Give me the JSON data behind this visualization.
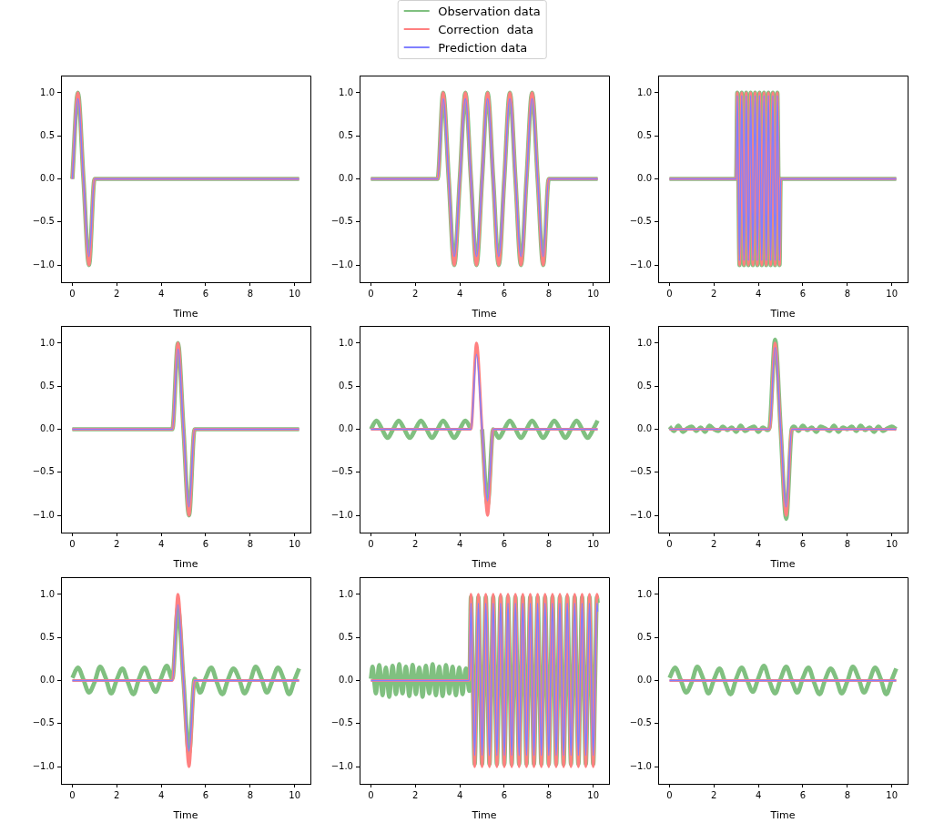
{
  "chart_data": [
    {
      "type": "line",
      "legend": "top",
      "xlabel": "Time",
      "xlim": [
        -0.51,
        10.71
      ],
      "xticks": [
        0,
        2,
        4,
        6,
        8,
        10
      ],
      "ylim": [
        -1.2,
        1.2
      ],
      "yticks": [
        {
          "value": -1,
          "label": "−1.0"
        },
        {
          "value": -0.5,
          "label": "−0.5"
        },
        {
          "value": 0,
          "label": "0.0"
        },
        {
          "value": 0.5,
          "label": "0.5"
        },
        {
          "value": 1,
          "label": "1.0"
        }
      ],
      "x": [
        0,
        0.25,
        0.5,
        0.75,
        1,
        10.2
      ],
      "series": [
        {
          "name": "Observation data",
          "color": "#80c080",
          "values": [
            0,
            1,
            0,
            -1,
            0,
            0
          ]
        },
        {
          "name": "Correction  data",
          "color": "#ff8080",
          "values": [
            0,
            1,
            0,
            -1,
            0,
            0
          ]
        },
        {
          "name": "Prediction data",
          "color": "#8080ff",
          "values": [
            0,
            0.93,
            0,
            -0.9,
            0,
            0
          ]
        }
      ]
    },
    {
      "type": "line",
      "xlabel": "Time",
      "xlim": [
        -0.51,
        10.71
      ],
      "xticks": [
        0,
        2,
        4,
        6,
        8,
        10
      ],
      "ylim": [
        -1.2,
        1.2
      ],
      "yticks": [
        {
          "value": -1,
          "label": "−1.0"
        },
        {
          "value": -0.5,
          "label": "−0.5"
        },
        {
          "value": 0,
          "label": "0.0"
        },
        {
          "value": 0.5,
          "label": "0.5"
        },
        {
          "value": 1,
          "label": "1.0"
        }
      ],
      "x": [
        0,
        3,
        3.25,
        3.5,
        3.75,
        4,
        4.25,
        4.5,
        4.75,
        5,
        5.25,
        5.5,
        5.75,
        6,
        6.25,
        6.5,
        6.75,
        7,
        7.25,
        7.5,
        7.75,
        8,
        10.2
      ],
      "series": [
        {
          "color": "#80c080",
          "values": [
            0,
            0,
            1,
            0,
            -1,
            0,
            1,
            0,
            -1,
            0,
            1,
            0,
            -1,
            0,
            1,
            0,
            -1,
            0,
            1,
            0,
            -1,
            0,
            0
          ]
        },
        {
          "color": "#ff8080",
          "values": [
            0,
            0,
            1,
            0,
            -1,
            0,
            1,
            0,
            -1,
            0,
            1,
            0,
            -1,
            0,
            1,
            0,
            -1,
            0,
            1,
            0,
            -1,
            0,
            0
          ]
        },
        {
          "color": "#8080ff",
          "values": [
            0,
            0,
            0.93,
            0,
            -0.9,
            0,
            0.93,
            0,
            -0.9,
            0,
            0.93,
            0,
            -0.9,
            0,
            0.93,
            0,
            -0.9,
            0,
            0.93,
            0,
            -0.9,
            0,
            0
          ]
        }
      ]
    },
    {
      "type": "line",
      "xlabel": "Time",
      "xlim": [
        -0.51,
        10.71
      ],
      "xticks": [
        0,
        2,
        4,
        6,
        8,
        10
      ],
      "ylim": [
        -1.2,
        1.2
      ],
      "yticks": [
        {
          "value": -1,
          "label": "−1.0"
        },
        {
          "value": -0.5,
          "label": "−0.5"
        },
        {
          "value": 0,
          "label": "0.0"
        },
        {
          "value": 0.5,
          "label": "0.5"
        },
        {
          "value": 1,
          "label": "1.0"
        }
      ],
      "x": [
        0,
        3,
        3.05,
        3.1,
        3.15,
        3.2,
        3.25,
        3.3,
        3.35,
        3.4,
        3.45,
        3.5,
        3.55,
        3.6,
        3.65,
        3.7,
        3.75,
        3.8,
        3.85,
        3.9,
        3.95,
        4,
        4.05,
        4.1,
        4.15,
        4.2,
        4.25,
        4.3,
        4.35,
        4.4,
        4.45,
        4.5,
        4.55,
        4.6,
        4.65,
        4.7,
        4.75,
        4.8,
        4.85,
        4.9,
        4.95,
        5,
        10.2
      ],
      "series": [
        {
          "color": "#80c080",
          "values": [
            0,
            0,
            1,
            0,
            -1,
            0,
            1,
            0,
            -1,
            0,
            1,
            0,
            -1,
            0,
            1,
            0,
            -1,
            0,
            1,
            0,
            -1,
            0,
            1,
            0,
            -1,
            0,
            1,
            0,
            -1,
            0,
            1,
            0,
            -1,
            0,
            1,
            0,
            -1,
            0,
            1,
            0,
            -1,
            0,
            0
          ]
        },
        {
          "color": "#ff8080",
          "values": [
            0,
            0,
            1,
            0,
            -1,
            0,
            1,
            0,
            -1,
            0,
            1,
            0,
            -1,
            0,
            1,
            0,
            -1,
            0,
            1,
            0,
            -1,
            0,
            1,
            0,
            -1,
            0,
            1,
            0,
            -1,
            0,
            1,
            0,
            -1,
            0,
            1,
            0,
            -1,
            0,
            1,
            0,
            -1,
            0,
            0
          ]
        },
        {
          "color": "#8080ff",
          "values": [
            0,
            0,
            0.97,
            0,
            -0.95,
            0,
            0.97,
            0,
            -0.95,
            0,
            0.97,
            0,
            -0.95,
            0,
            0.97,
            0,
            -0.95,
            0,
            0.97,
            0,
            -0.95,
            0,
            0.97,
            0,
            -0.95,
            0,
            0.97,
            0,
            -0.95,
            0,
            0.97,
            0,
            -0.95,
            0,
            0.97,
            0,
            -0.95,
            0,
            0.97,
            0,
            -0.95,
            0,
            0
          ]
        }
      ]
    },
    {
      "type": "line",
      "xlabel": "Time",
      "xlim": [
        -0.51,
        10.71
      ],
      "xticks": [
        0,
        2,
        4,
        6,
        8,
        10
      ],
      "ylim": [
        -1.2,
        1.2
      ],
      "yticks": [
        {
          "value": -1,
          "label": "−1.0"
        },
        {
          "value": -0.5,
          "label": "−0.5"
        },
        {
          "value": 0,
          "label": "0.0"
        },
        {
          "value": 0.5,
          "label": "0.5"
        },
        {
          "value": 1,
          "label": "1.0"
        }
      ],
      "x": [
        0,
        4.5,
        4.75,
        5,
        5.25,
        5.5,
        10.2
      ],
      "series": [
        {
          "color": "#80c080",
          "values": [
            0,
            0,
            1,
            0,
            -1,
            0,
            0
          ]
        },
        {
          "color": "#ff8080",
          "values": [
            0,
            0,
            1,
            0,
            -1,
            0,
            0
          ]
        },
        {
          "color": "#8080ff",
          "values": [
            0,
            0,
            0.93,
            0,
            -0.9,
            0,
            0
          ]
        }
      ]
    },
    {
      "type": "line",
      "xlabel": "Time",
      "xlim": [
        -0.51,
        10.71
      ],
      "xticks": [
        0,
        2,
        4,
        6,
        8,
        10
      ],
      "ylim": [
        -1.2,
        1.2
      ],
      "yticks": [
        {
          "value": -1,
          "label": "−1.0"
        },
        {
          "value": -0.5,
          "label": "−0.5"
        },
        {
          "value": 0,
          "label": "0.0"
        },
        {
          "value": 0.5,
          "label": "0.5"
        },
        {
          "value": 1,
          "label": "1.0"
        }
      ],
      "x": [
        0,
        4.5,
        4.75,
        5,
        5.25,
        5.5,
        10.2
      ],
      "series": [
        {
          "color": "#80c080",
          "x": [
            0,
            0.25,
            0.5,
            0.75,
            1,
            1.25,
            1.5,
            1.75,
            2,
            2.25,
            2.5,
            2.75,
            3,
            3.25,
            3.5,
            3.75,
            4,
            4.25,
            4.5,
            4.75,
            5,
            5.25,
            5.5,
            5.75,
            6,
            6.25,
            6.5,
            6.75,
            7,
            7.25,
            7.5,
            7.75,
            8,
            8.25,
            8.5,
            8.75,
            9,
            9.25,
            9.5,
            9.75,
            10,
            10.2
          ],
          "values": [
            0,
            0.1,
            0,
            -0.1,
            0,
            0.1,
            0,
            -0.1,
            0,
            0.1,
            0,
            -0.1,
            0,
            0.1,
            0,
            -0.1,
            0,
            0.1,
            0,
            null,
            0,
            -0.88,
            0,
            -0.1,
            0,
            0.1,
            0,
            -0.1,
            0,
            0.1,
            0,
            -0.1,
            0,
            0.1,
            0,
            -0.1,
            0,
            0.1,
            0,
            -0.1,
            0,
            0.1
          ]
        },
        {
          "color": "#ff8080",
          "values": [
            0,
            0,
            1,
            0,
            -1,
            0,
            0
          ]
        },
        {
          "color": "#8080ff",
          "values": [
            0,
            0,
            0.87,
            0,
            -0.83,
            0,
            0
          ]
        }
      ]
    },
    {
      "type": "line",
      "xlabel": "Time",
      "xlim": [
        -0.51,
        10.71
      ],
      "xticks": [
        0,
        2,
        4,
        6,
        8,
        10
      ],
      "ylim": [
        -1.2,
        1.2
      ],
      "yticks": [
        {
          "value": -1,
          "label": "−1.0"
        },
        {
          "value": -0.5,
          "label": "−0.5"
        },
        {
          "value": 0,
          "label": "0.0"
        },
        {
          "value": 0.5,
          "label": "0.5"
        },
        {
          "value": 1,
          "label": "1.0"
        }
      ],
      "x": [
        0,
        4.5,
        4.75,
        5,
        5.25,
        5.5,
        10.2
      ],
      "series": [
        {
          "color": "#80c080",
          "x": [
            0,
            0.2,
            0.4,
            0.6,
            0.8,
            1,
            1.2,
            1.4,
            1.6,
            1.8,
            2,
            2.2,
            2.4,
            2.6,
            2.8,
            3,
            3.2,
            3.4,
            3.6,
            3.8,
            4,
            4.2,
            4.4,
            4.5,
            4.75,
            5,
            5.25,
            5.5,
            5.6,
            5.8,
            6,
            6.2,
            6.4,
            6.6,
            6.8,
            7,
            7.2,
            7.4,
            7.6,
            7.8,
            8,
            8.2,
            8.4,
            8.6,
            8.8,
            9,
            9.2,
            9.4,
            9.6,
            9.8,
            10,
            10.2
          ],
          "values": [
            0.03,
            -0.02,
            0.04,
            -0.03,
            0.01,
            0.03,
            -0.02,
            0.02,
            -0.03,
            0.04,
            0,
            -0.02,
            0.03,
            -0.01,
            0.02,
            -0.03,
            0.04,
            -0.02,
            0.01,
            0.03,
            -0.03,
            0.02,
            -0.01,
            0.02,
            1.04,
            0,
            -1.04,
            0,
            0.03,
            -0.02,
            0.04,
            -0.01,
            0.02,
            -0.03,
            0.03,
            0.01,
            -0.02,
            0.04,
            -0.03,
            0.02,
            0,
            0.03,
            -0.02,
            0.04,
            -0.01,
            0.02,
            -0.03,
            0.03,
            -0.02,
            0.01,
            0.03,
            0
          ]
        },
        {
          "color": "#ff8080",
          "values": [
            0,
            0,
            1,
            0,
            -1,
            0,
            0
          ]
        },
        {
          "color": "#8080ff",
          "values": [
            0,
            0,
            0.95,
            0,
            -0.9,
            0,
            0
          ]
        }
      ]
    },
    {
      "type": "line",
      "xlabel": "Time",
      "xlim": [
        -0.51,
        10.71
      ],
      "xticks": [
        0,
        2,
        4,
        6,
        8,
        10
      ],
      "ylim": [
        -1.2,
        1.2
      ],
      "yticks": [
        {
          "value": -1,
          "label": "−1.0"
        },
        {
          "value": -0.5,
          "label": "−0.5"
        },
        {
          "value": 0,
          "label": "0.0"
        },
        {
          "value": 0.5,
          "label": "0.5"
        },
        {
          "value": 1,
          "label": "1.0"
        }
      ],
      "x": [
        0,
        4.5,
        4.75,
        5,
        5.25,
        5.5,
        10.2
      ],
      "series": [
        {
          "color": "#80c080",
          "x": [
            0,
            0.25,
            0.5,
            0.75,
            1,
            1.25,
            1.5,
            1.75,
            2,
            2.25,
            2.5,
            2.75,
            3,
            3.25,
            3.5,
            3.75,
            4,
            4.25,
            4.5,
            4.75,
            5,
            5.25,
            5.5,
            5.75,
            6,
            6.25,
            6.5,
            6.75,
            7,
            7.25,
            7.5,
            7.75,
            8,
            8.25,
            8.5,
            8.75,
            9,
            9.25,
            9.5,
            9.75,
            10,
            10.2
          ],
          "values": [
            0.03,
            0.15,
            0.01,
            -0.14,
            -0.02,
            0.16,
            0.03,
            -0.15,
            0.01,
            0.14,
            -0.02,
            -0.16,
            0.02,
            0.15,
            0,
            -0.13,
            0.03,
            0.17,
            0.02,
            0.85,
            0,
            -0.85,
            0.02,
            -0.14,
            0.03,
            0.15,
            -0.02,
            -0.16,
            0.01,
            0.14,
            0.02,
            -0.15,
            -0.01,
            0.16,
            0.03,
            -0.14,
            0,
            0.15,
            0.02,
            -0.16,
            0.01,
            0.14
          ]
        },
        {
          "color": "#ff8080",
          "values": [
            0,
            0,
            1,
            0,
            -1,
            0,
            0
          ]
        },
        {
          "color": "#8080ff",
          "values": [
            0,
            0,
            0.88,
            0,
            -0.82,
            0,
            0
          ]
        }
      ]
    },
    {
      "type": "line",
      "xlabel": "Time",
      "xlim": [
        -0.51,
        10.71
      ],
      "xticks": [
        0,
        2,
        4,
        6,
        8,
        10
      ],
      "ylim": [
        -1.2,
        1.2
      ],
      "yticks": [
        {
          "value": -1,
          "label": "−1.0"
        },
        {
          "value": -0.5,
          "label": "−0.5"
        },
        {
          "value": 0,
          "label": "0.0"
        },
        {
          "value": 0.5,
          "label": "0.5"
        },
        {
          "value": 1,
          "label": "1.0"
        }
      ],
      "x": [
        0,
        0.075,
        0.15,
        0.225,
        0.3,
        0.375,
        0.45,
        0.525,
        0.6,
        0.675,
        0.75,
        0.825,
        0.9,
        0.975,
        1.05,
        1.125,
        1.2,
        1.275,
        1.35,
        1.425,
        1.5,
        1.575,
        1.65,
        1.725,
        1.8,
        1.875,
        1.95,
        2.025,
        2.1,
        2.175,
        2.25,
        2.325,
        2.4,
        2.475,
        2.55,
        2.625,
        2.7,
        2.775,
        2.85,
        2.925,
        3,
        3.075,
        3.15,
        3.225,
        3.3,
        3.375,
        3.45,
        3.525,
        3.6,
        3.675,
        3.75,
        3.825,
        3.9,
        3.975,
        4.05,
        4.125,
        4.2,
        4.275,
        4.35,
        4.425,
        4.5,
        4.583,
        4.667,
        4.75,
        4.833,
        4.917,
        5,
        5.083,
        5.167,
        5.25,
        5.333,
        5.417,
        5.5,
        5.583,
        5.667,
        5.75,
        5.833,
        5.917,
        6,
        6.083,
        6.167,
        6.25,
        6.333,
        6.417,
        6.5,
        6.583,
        6.667,
        6.75,
        6.833,
        6.917,
        7,
        7.083,
        7.167,
        7.25,
        7.333,
        7.417,
        7.5,
        7.583,
        7.667,
        7.75,
        7.833,
        7.917,
        8,
        8.083,
        8.167,
        8.25,
        8.333,
        8.417,
        8.5,
        8.583,
        8.667,
        8.75,
        8.833,
        8.917,
        9,
        9.083,
        9.167,
        9.25,
        9.333,
        9.417,
        9.5,
        9.583,
        9.667,
        9.75,
        9.833,
        9.917,
        10,
        10.083,
        10.167,
        10.2
      ],
      "series": [
        {
          "color": "#80c080",
          "values": [
            0.02,
            0.16,
            -0.01,
            -0.15,
            0.03,
            0.18,
            0,
            -0.17,
            0.02,
            0.15,
            -0.03,
            -0.19,
            0.01,
            0.17,
            0.02,
            -0.16,
            0,
            0.19,
            -0.02,
            -0.15,
            0.03,
            0.16,
            0.01,
            -0.18,
            -0.01,
            0.18,
            0.02,
            -0.16,
            0.02,
            0.15,
            0,
            -0.19,
            0.03,
            0.17,
            -0.02,
            -0.15,
            0.01,
            0.19,
            0,
            -0.17,
            0.02,
            0.16,
            -0.01,
            -0.18,
            0,
            0.18,
            0.03,
            -0.15,
            0.02,
            0.16,
            -0.02,
            -0.17,
            0.01,
            0.15,
            0,
            -0.16,
            0.03,
            0.14,
            0.01,
            -0.12,
            0.97,
            0,
            -0.97,
            0,
            0.97,
            0,
            -0.97,
            0,
            0.97,
            0,
            -0.97,
            0,
            0.97,
            0,
            -0.97,
            0,
            0.97,
            0,
            -0.97,
            0,
            0.97,
            0,
            -0.97,
            0,
            0.97,
            0,
            -0.97,
            0,
            0.97,
            0,
            -0.97,
            0,
            0.97,
            0,
            -0.97,
            0,
            0.97,
            0,
            -0.97,
            0,
            0.97,
            0,
            -0.97,
            0,
            0.97,
            0,
            -0.97,
            0,
            0.97,
            0,
            -0.97,
            0,
            0.97,
            0,
            -0.97,
            0,
            0.97,
            0,
            -0.97,
            0,
            0.97,
            0,
            -0.97,
            0,
            0.97,
            0,
            -0.97,
            0,
            0.97,
            0.9
          ]
        },
        {
          "color": "#ff8080",
          "values": [
            0,
            0,
            0,
            0,
            0,
            0,
            0,
            0,
            0,
            0,
            0,
            0,
            0,
            0,
            0,
            0,
            0,
            0,
            0,
            0,
            0,
            0,
            0,
            0,
            0,
            0,
            0,
            0,
            0,
            0,
            0,
            0,
            0,
            0,
            0,
            0,
            0,
            0,
            0,
            0,
            0,
            0,
            0,
            0,
            0,
            0,
            0,
            0,
            0,
            0,
            0,
            0,
            0,
            0,
            0,
            0,
            0,
            0,
            0,
            0,
            1,
            0,
            -1,
            0,
            1,
            0,
            -1,
            0,
            1,
            0,
            -1,
            0,
            1,
            0,
            -1,
            0,
            1,
            0,
            -1,
            0,
            1,
            0,
            -1,
            0,
            1,
            0,
            -1,
            0,
            1,
            0,
            -1,
            0,
            1,
            0,
            -1,
            0,
            1,
            0,
            -1,
            0,
            1,
            0,
            -1,
            0,
            1,
            0,
            -1,
            0,
            1,
            0,
            -1,
            0,
            1,
            0,
            -1,
            0,
            1,
            0,
            -1,
            0,
            1,
            0,
            -1,
            0,
            1,
            0,
            -1,
            0,
            1,
            0.95
          ]
        },
        {
          "color": "#8080ff",
          "values": [
            0,
            0,
            0,
            0,
            0,
            0,
            0,
            0,
            0,
            0,
            0,
            0,
            0,
            0,
            0,
            0,
            0,
            0,
            0,
            0,
            0,
            0,
            0,
            0,
            0,
            0,
            0,
            0,
            0,
            0,
            0,
            0,
            0,
            0,
            0,
            0,
            0,
            0,
            0,
            0,
            0,
            0,
            0,
            0,
            0,
            0,
            0,
            0,
            0,
            0,
            0,
            0,
            0,
            0,
            0,
            0,
            0,
            0,
            0,
            0,
            0.9,
            0,
            -0.87,
            0,
            0.9,
            0,
            -0.87,
            0,
            0.9,
            0,
            -0.87,
            0,
            0.9,
            0,
            -0.87,
            0,
            0.9,
            0,
            -0.87,
            0,
            0.9,
            0,
            -0.87,
            0,
            0.9,
            0,
            -0.87,
            0,
            0.9,
            0,
            -0.87,
            0,
            0.9,
            0,
            -0.87,
            0,
            0.9,
            0,
            -0.87,
            0,
            0.9,
            0,
            -0.87,
            0,
            0.9,
            0,
            -0.87,
            0,
            0.9,
            0,
            -0.87,
            0,
            0.9,
            0,
            -0.87,
            0,
            0.9,
            0,
            -0.87,
            0,
            0.9,
            0,
            -0.87,
            0,
            0.9,
            0,
            -0.87,
            0,
            0.9,
            0.8
          ]
        }
      ]
    },
    {
      "type": "line",
      "xlabel": "Time",
      "xlim": [
        -0.51,
        10.71
      ],
      "xticks": [
        0,
        2,
        4,
        6,
        8,
        10
      ],
      "ylim": [
        -1.2,
        1.2
      ],
      "yticks": [
        {
          "value": -1,
          "label": "−1.0"
        },
        {
          "value": -0.5,
          "label": "−0.5"
        },
        {
          "value": 0,
          "label": "0.0"
        },
        {
          "value": 0.5,
          "label": "0.5"
        },
        {
          "value": 1,
          "label": "1.0"
        }
      ],
      "x": [
        0,
        10.2
      ],
      "series": [
        {
          "color": "#80c080",
          "x": [
            0,
            0.25,
            0.5,
            0.75,
            1,
            1.25,
            1.5,
            1.75,
            2,
            2.25,
            2.5,
            2.75,
            3,
            3.25,
            3.5,
            3.75,
            4,
            4.25,
            4.5,
            4.75,
            5,
            5.25,
            5.5,
            5.75,
            6,
            6.25,
            6.5,
            6.75,
            7,
            7.25,
            7.5,
            7.75,
            8,
            8.25,
            8.5,
            8.75,
            9,
            9.25,
            9.5,
            9.75,
            10,
            10.2
          ],
          "values": [
            0.03,
            0.15,
            0.01,
            -0.14,
            -0.02,
            0.16,
            0.03,
            -0.15,
            0.01,
            0.14,
            -0.02,
            -0.16,
            0.02,
            0.15,
            0,
            -0.13,
            0.03,
            0.17,
            -0.01,
            -0.15,
            0.02,
            0.16,
            0,
            -0.14,
            0.03,
            0.15,
            -0.02,
            -0.16,
            0.01,
            0.14,
            0.02,
            -0.15,
            -0.01,
            0.16,
            0.03,
            -0.14,
            0,
            0.15,
            0.02,
            -0.16,
            0.01,
            0.14
          ]
        },
        {
          "color": "#ff8080",
          "values": [
            0,
            0
          ]
        },
        {
          "color": "#8080ff",
          "values": [
            0,
            0
          ]
        }
      ]
    }
  ]
}
